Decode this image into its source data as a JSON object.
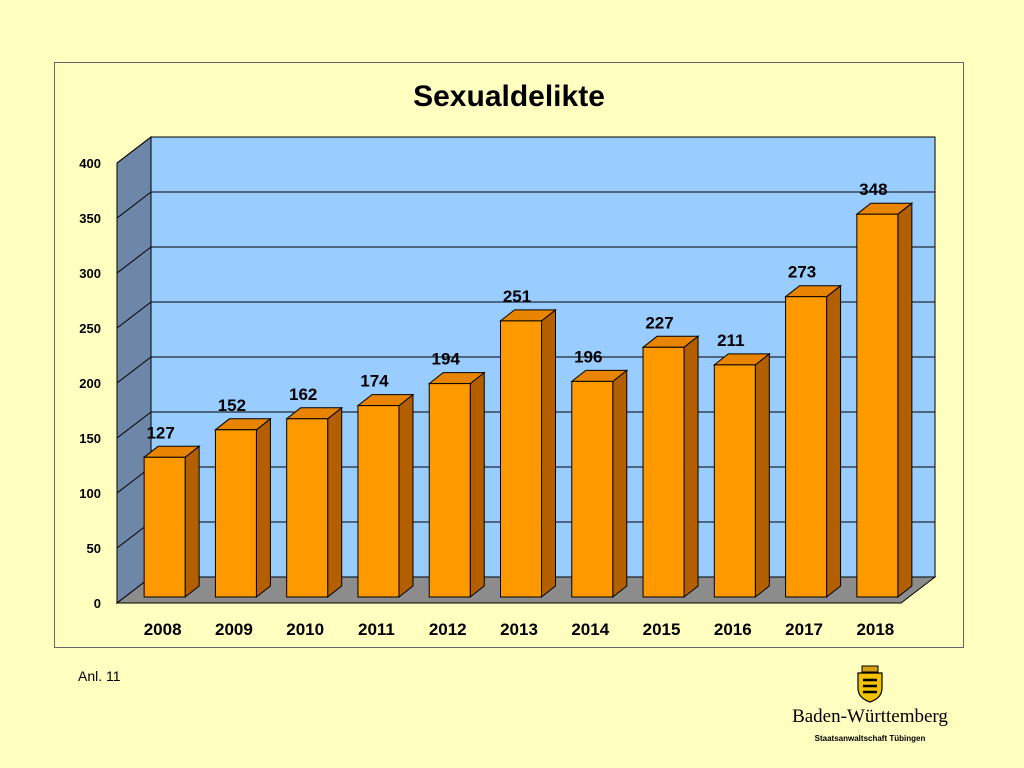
{
  "chart_data": {
    "type": "bar",
    "title": "Sexualdelikte",
    "categories": [
      "2008",
      "2009",
      "2010",
      "2011",
      "2012",
      "2013",
      "2014",
      "2015",
      "2016",
      "2017",
      "2018"
    ],
    "values": [
      127,
      152,
      162,
      174,
      194,
      251,
      196,
      227,
      211,
      273,
      348
    ],
    "ylim": [
      0,
      400
    ],
    "yticks": [
      0,
      50,
      100,
      150,
      200,
      250,
      300,
      350,
      400
    ],
    "grid": true,
    "style": "3d",
    "colors": {
      "bar_front": "#FF9900",
      "bar_side": "#B35F00",
      "bar_top": "#E88400",
      "wall": "#99CCFF",
      "side_wall": "#6E87A8",
      "floor": "#8C8C8C"
    }
  },
  "footnote": "Anl. 11",
  "logo": {
    "wordmark": "Baden-Württemberg",
    "subtitle": "Staatsanwaltschaft Tübingen"
  }
}
